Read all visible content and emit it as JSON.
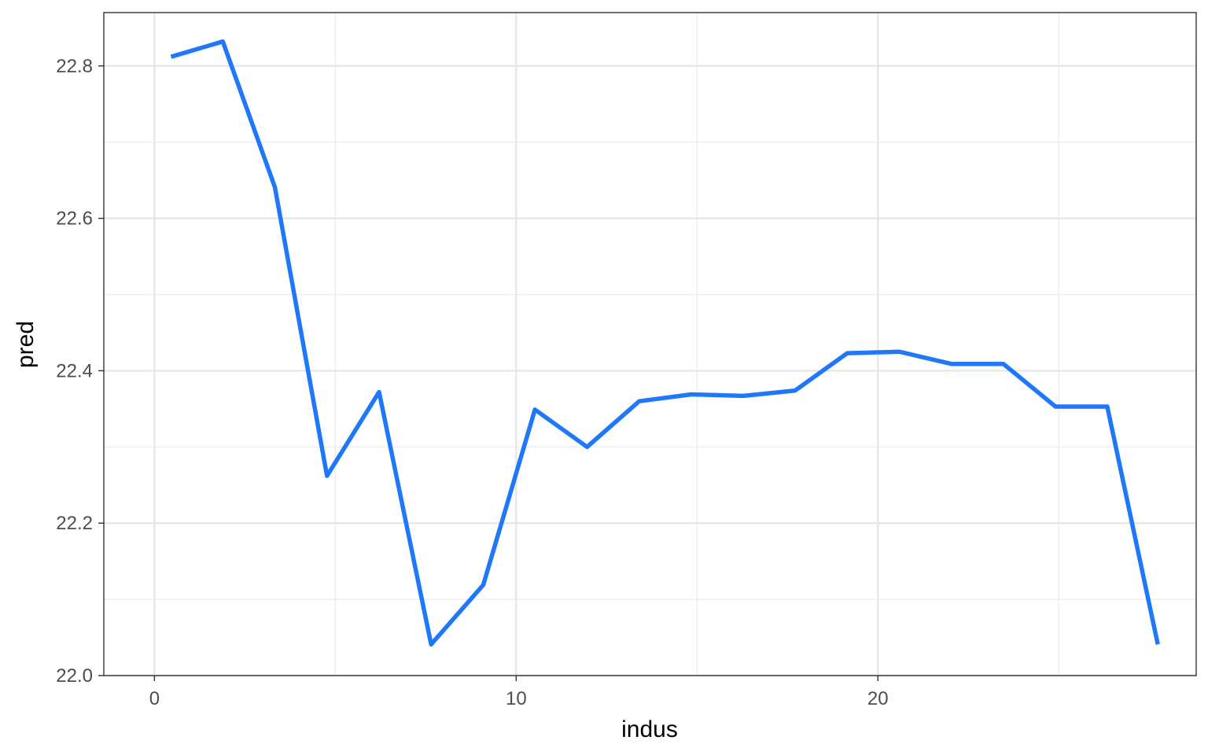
{
  "chart_data": {
    "type": "line",
    "title": "",
    "xlabel": "indus",
    "ylabel": "pred",
    "xlim": [
      -1.4,
      28.8
    ],
    "ylim": [
      22.0,
      22.87
    ],
    "x_ticks": [
      0,
      10,
      20
    ],
    "x_tick_labels": [
      "0",
      "10",
      "20"
    ],
    "y_ticks": [
      22.0,
      22.2,
      22.4,
      22.6,
      22.8
    ],
    "y_tick_labels": [
      "22.0",
      "22.2",
      "22.4",
      "22.6",
      "22.8"
    ],
    "grid": true,
    "legend": "none",
    "series": [
      {
        "color": "#1f77fa",
        "x": [
          0.46,
          1.89,
          3.33,
          4.77,
          6.21,
          7.65,
          9.09,
          10.52,
          11.96,
          13.4,
          14.84,
          16.28,
          17.71,
          19.15,
          20.59,
          22.03,
          23.47,
          24.91,
          26.34,
          27.74
        ],
        "y": [
          22.812,
          22.832,
          22.641,
          22.262,
          22.372,
          22.041,
          22.119,
          22.349,
          22.3,
          22.36,
          22.369,
          22.367,
          22.374,
          22.423,
          22.425,
          22.409,
          22.409,
          22.353,
          22.353,
          22.041
        ]
      }
    ]
  }
}
